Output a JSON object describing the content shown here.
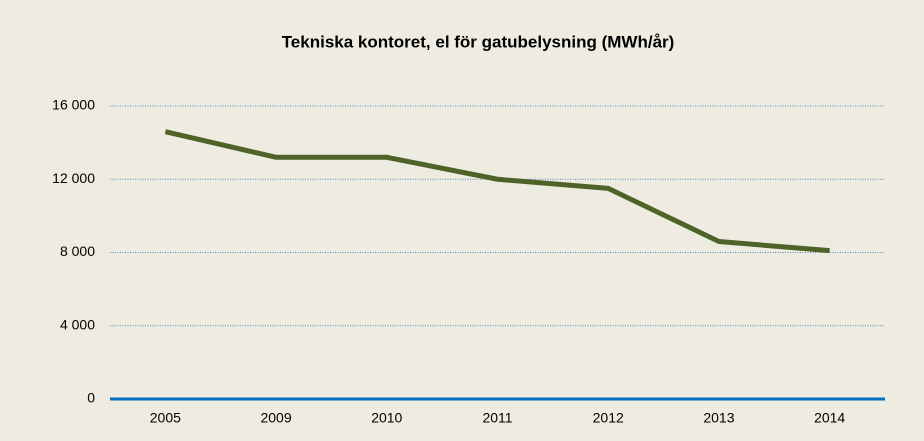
{
  "chart_data": {
    "type": "line",
    "title": "Tekniska kontoret, el för gatubelysning (MWh/år)",
    "categories": [
      "2005",
      "2009",
      "2010",
      "2011",
      "2012",
      "2013",
      "2014"
    ],
    "series": [
      {
        "name": "El för gatubelysning",
        "color": "#4f6228",
        "values": [
          14600,
          13200,
          13200,
          12000,
          11500,
          8600,
          8100
        ]
      }
    ],
    "ylim": [
      0,
      16000
    ],
    "yticks": [
      0,
      {
        "value": 4000,
        "label": "4 000"
      },
      {
        "value": 8000,
        "label": "8 000"
      },
      {
        "value": 12000,
        "label": "12 000"
      },
      {
        "value": 16000,
        "label": "16 000"
      }
    ],
    "grid": true
  }
}
